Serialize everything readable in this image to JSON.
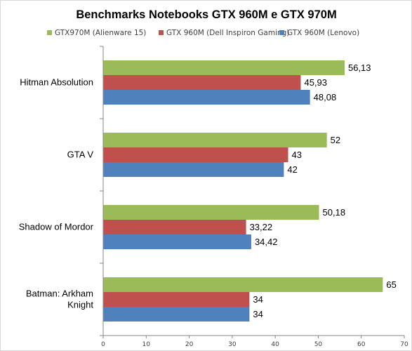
{
  "chart_data": {
    "type": "bar",
    "orientation": "horizontal",
    "title": "Benchmarks Notebooks GTX 960M e GTX 970M",
    "xlabel": "",
    "ylabel": "",
    "categories": [
      [
        "Hitman Absolution"
      ],
      [
        "GTA V"
      ],
      [
        "Shadow of Mordor"
      ],
      [
        "Batman: Arkham",
        "Knight"
      ]
    ],
    "series": [
      {
        "name": "GTX970M (Alienware 15)",
        "color": "#9bbb59",
        "values": [
          56.13,
          52,
          50.18,
          65
        ],
        "labels": [
          "56,13",
          "52",
          "50,18",
          "65"
        ]
      },
      {
        "name": "GTX 960M (Dell Inspiron Gaming)",
        "color": "#c0504d",
        "values": [
          45.93,
          43,
          33.22,
          34
        ],
        "labels": [
          "45,93",
          "43",
          "33,22",
          "34"
        ]
      },
      {
        "name": "GTX 960M (Lenovo)",
        "color": "#4f81bd",
        "values": [
          48.08,
          42,
          34.42,
          34
        ],
        "labels": [
          "48,08",
          "42",
          "34,42",
          "34"
        ]
      }
    ],
    "xlim": [
      0,
      70
    ],
    "xticks": [
      "0",
      "10",
      "20",
      "30",
      "40",
      "50",
      "60",
      "70"
    ],
    "grid": false,
    "legend_position": "top"
  }
}
